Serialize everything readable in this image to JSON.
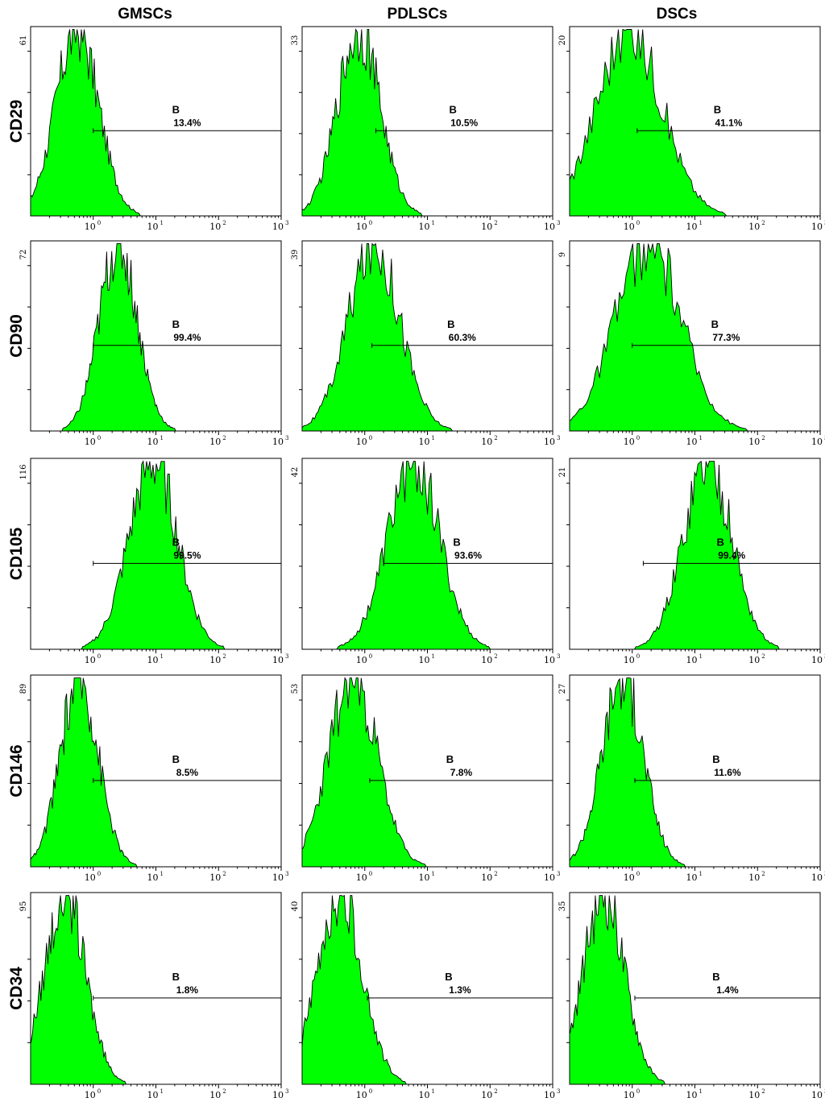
{
  "figure": {
    "columns": [
      "GMSCs",
      "PDLSCs",
      "DSCs"
    ],
    "rows": [
      "CD29",
      "CD90",
      "CD105",
      "CD146",
      "CD34"
    ],
    "colors": {
      "fill": "#00ff00",
      "outline": "#000000"
    }
  },
  "chart_data": [
    {
      "type": "area",
      "row": "CD29",
      "column": "GMSCs",
      "y_max_label": "61",
      "xlog": true,
      "xlim": [
        0.1,
        1000
      ],
      "x_ticks": [
        "10^0",
        "10^1",
        "10^2",
        "10^3"
      ],
      "peak": 0.55,
      "spread": 0.62,
      "gate": {
        "label": "B",
        "value": "13.4%",
        "from": 1.0,
        "to": 1000
      }
    },
    {
      "type": "area",
      "row": "CD29",
      "column": "PDLSCs",
      "y_max_label": "33",
      "xlog": true,
      "xlim": [
        0.1,
        1000
      ],
      "x_ticks": [
        "10^0",
        "10^1",
        "10^2",
        "10^3"
      ],
      "peak": 0.8,
      "spread": 0.62,
      "gate": {
        "label": "B",
        "value": "10.5%",
        "from": 1.5,
        "to": 1000
      }
    },
    {
      "type": "area",
      "row": "CD29",
      "column": "DSCs",
      "y_max_label": "20",
      "xlog": true,
      "xlim": [
        0.1,
        1000
      ],
      "x_ticks": [
        "10^0",
        "10^1",
        "10^2",
        "10^3"
      ],
      "peak": 0.9,
      "spread": 0.95,
      "gate": {
        "label": "B",
        "value": "41.1%",
        "from": 1.2,
        "to": 1000
      }
    },
    {
      "type": "area",
      "row": "CD90",
      "column": "GMSCs",
      "y_max_label": "72",
      "xlog": true,
      "xlim": [
        0.1,
        1000
      ],
      "x_ticks": [
        "10^0",
        "10^1",
        "10^2",
        "10^3"
      ],
      "peak": 2.5,
      "spread": 0.55,
      "gate": {
        "label": "B",
        "value": "99.4%",
        "from": 1.0,
        "to": 1000
      }
    },
    {
      "type": "area",
      "row": "CD90",
      "column": "PDLSCs",
      "y_max_label": "39",
      "xlog": true,
      "xlim": [
        0.1,
        1000
      ],
      "x_ticks": [
        "10^0",
        "10^1",
        "10^2",
        "10^3"
      ],
      "peak": 1.4,
      "spread": 0.75,
      "gate": {
        "label": "B",
        "value": "60.3%",
        "from": 1.3,
        "to": 1000
      }
    },
    {
      "type": "area",
      "row": "CD90",
      "column": "DSCs",
      "y_max_label": "9",
      "xlog": true,
      "xlim": [
        0.1,
        1000
      ],
      "x_ticks": [
        "10^0",
        "10^1",
        "10^2",
        "10^3"
      ],
      "peak": 1.8,
      "spread": 0.95,
      "gate": {
        "label": "B",
        "value": "77.3%",
        "from": 1.0,
        "to": 1000
      }
    },
    {
      "type": "area",
      "row": "CD105",
      "column": "GMSCs",
      "y_max_label": "116",
      "xlog": true,
      "xlim": [
        0.1,
        1000
      ],
      "x_ticks": [
        "10^0",
        "10^1",
        "10^2",
        "10^3"
      ],
      "peak": 9,
      "spread": 0.7,
      "gate": {
        "label": "B",
        "value": "99.5%",
        "from": 1.0,
        "to": 1000
      }
    },
    {
      "type": "area",
      "row": "CD105",
      "column": "PDLSCs",
      "y_max_label": "42",
      "xlog": true,
      "xlim": [
        0.1,
        1000
      ],
      "x_ticks": [
        "10^0",
        "10^1",
        "10^2",
        "10^3"
      ],
      "peak": 6,
      "spread": 0.75,
      "gate": {
        "label": "B",
        "value": "93.6%",
        "from": 2.0,
        "to": 1000
      }
    },
    {
      "type": "area",
      "row": "CD105",
      "column": "DSCs",
      "y_max_label": "21",
      "xlog": true,
      "xlim": [
        0.1,
        1000
      ],
      "x_ticks": [
        "10^0",
        "10^1",
        "10^2",
        "10^3"
      ],
      "peak": 16,
      "spread": 0.7,
      "gate": {
        "label": "B",
        "value": "99.4%",
        "from": 1.5,
        "to": 1000
      }
    },
    {
      "type": "area",
      "row": "CD146",
      "column": "GMSCs",
      "y_max_label": "89",
      "xlog": true,
      "xlim": [
        0.1,
        1000
      ],
      "x_ticks": [
        "10^0",
        "10^1",
        "10^2",
        "10^3"
      ],
      "peak": 0.6,
      "spread": 0.55,
      "gate": {
        "label": "B",
        "value": "8.5%",
        "from": 1.0,
        "to": 1000
      }
    },
    {
      "type": "area",
      "row": "CD146",
      "column": "PDLSCs",
      "y_max_label": "53",
      "xlog": true,
      "xlim": [
        0.1,
        1000
      ],
      "x_ticks": [
        "10^0",
        "10^1",
        "10^2",
        "10^3"
      ],
      "peak": 0.65,
      "spread": 0.7,
      "gate": {
        "label": "B",
        "value": "7.8%",
        "from": 1.2,
        "to": 1000
      }
    },
    {
      "type": "area",
      "row": "CD146",
      "column": "DSCs",
      "y_max_label": "27",
      "xlog": true,
      "xlim": [
        0.1,
        1000
      ],
      "x_ticks": [
        "10^0",
        "10^1",
        "10^2",
        "10^3"
      ],
      "peak": 0.7,
      "spread": 0.6,
      "gate": {
        "label": "B",
        "value": "11.6%",
        "from": 1.1,
        "to": 1000
      }
    },
    {
      "type": "area",
      "row": "CD34",
      "column": "GMSCs",
      "y_max_label": "95",
      "xlog": true,
      "xlim": [
        0.1,
        1000
      ],
      "x_ticks": [
        "10^0",
        "10^1",
        "10^2",
        "10^3"
      ],
      "peak": 0.35,
      "spread": 0.6,
      "gate": {
        "label": "B",
        "value": "1.8%",
        "from": 1.0,
        "to": 1000
      }
    },
    {
      "type": "area",
      "row": "CD34",
      "column": "PDLSCs",
      "y_max_label": "40",
      "xlog": true,
      "xlim": [
        0.1,
        1000
      ],
      "x_ticks": [
        "10^0",
        "10^1",
        "10^2",
        "10^3"
      ],
      "peak": 0.4,
      "spread": 0.65,
      "gate": {
        "label": "B",
        "value": "1.3%",
        "from": 1.1,
        "to": 1000
      }
    },
    {
      "type": "area",
      "row": "CD34",
      "column": "DSCs",
      "y_max_label": "35",
      "xlog": true,
      "xlim": [
        0.1,
        1000
      ],
      "x_ticks": [
        "10^0",
        "10^1",
        "10^2",
        "10^3"
      ],
      "peak": 0.35,
      "spread": 0.6,
      "gate": {
        "label": "B",
        "value": "1.4%",
        "from": 1.1,
        "to": 1000
      }
    }
  ]
}
